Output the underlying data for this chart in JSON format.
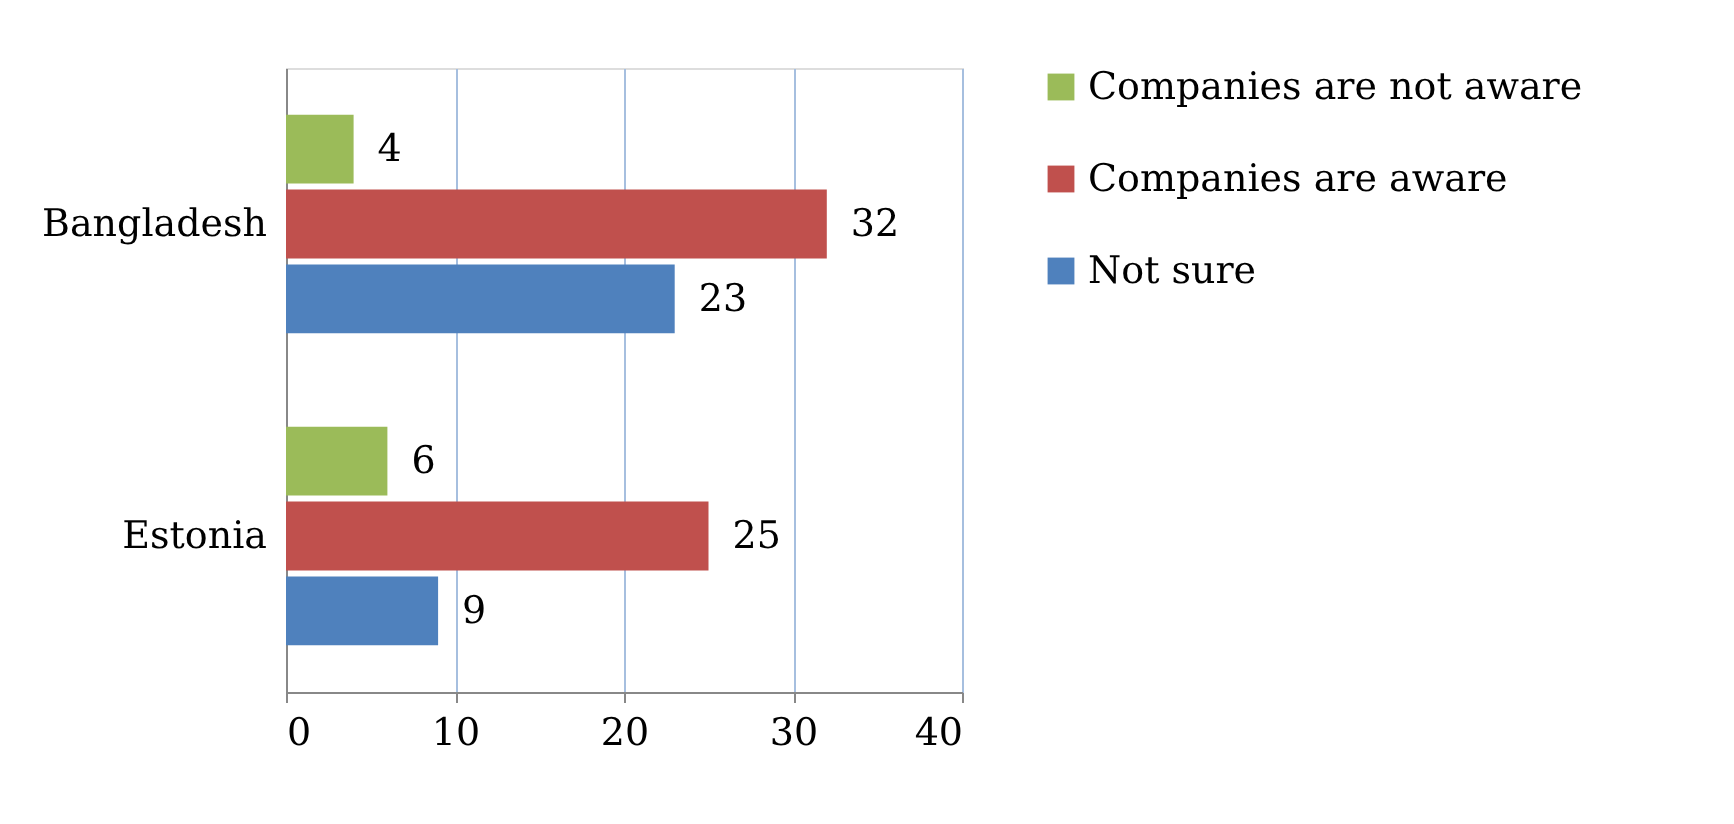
{
  "chart_data": {
    "type": "bar",
    "orientation": "horizontal",
    "categories": [
      "Bangladesh",
      "Estonia"
    ],
    "series": [
      {
        "name": "Companies are not aware",
        "color": "#9bbb59",
        "values": [
          4,
          6
        ]
      },
      {
        "name": "Companies are aware",
        "color": "#c0504d",
        "values": [
          32,
          25
        ]
      },
      {
        "name": "Not sure",
        "color": "#4f81bd",
        "values": [
          23,
          9
        ]
      }
    ],
    "xlim": [
      0,
      40
    ],
    "xticks": [
      0,
      10,
      20,
      30,
      40
    ],
    "grid": "x",
    "legend": "right",
    "data_labels": true
  }
}
